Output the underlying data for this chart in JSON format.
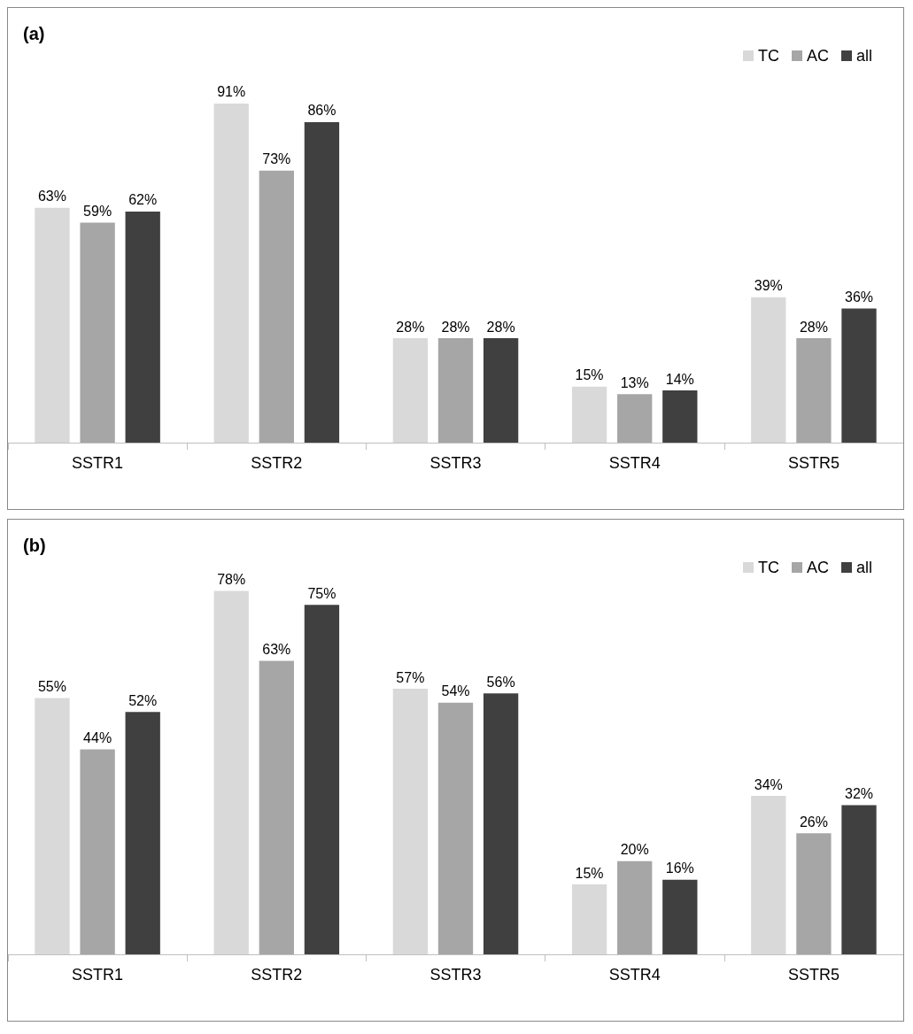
{
  "chart_data": [
    {
      "type": "bar",
      "title": "(a)",
      "categories": [
        "SSTR1",
        "SSTR2",
        "SSTR3",
        "SSTR4",
        "SSTR5"
      ],
      "legend": "top right",
      "tick_labels": "x",
      "series": [
        {
          "name": "TC",
          "color": "#d9d9d9",
          "values": [
            63,
            91,
            28,
            15,
            39
          ],
          "value_labels": [
            "63%",
            "91%",
            "28%",
            "15%",
            "39%"
          ]
        },
        {
          "name": "AC",
          "color": "#a6a6a6",
          "values": [
            59,
            73,
            28,
            13,
            28
          ],
          "value_labels": [
            "59%",
            "73%",
            "28%",
            "13%",
            "28%"
          ]
        },
        {
          "name": "all",
          "color": "#404040",
          "values": [
            62,
            86,
            28,
            14,
            36
          ],
          "value_labels": [
            "62%",
            "86%",
            "28%",
            "14%",
            "36%"
          ]
        }
      ]
    },
    {
      "type": "bar",
      "title": "(b)",
      "categories": [
        "SSTR1",
        "SSTR2",
        "SSTR3",
        "SSTR4",
        "SSTR5"
      ],
      "legend": "top right",
      "tick_labels": "x",
      "series": [
        {
          "name": "TC",
          "color": "#d9d9d9",
          "values": [
            55,
            78,
            57,
            15,
            34
          ],
          "value_labels": [
            "55%",
            "78%",
            "57%",
            "15%",
            "34%"
          ]
        },
        {
          "name": "AC",
          "color": "#a6a6a6",
          "values": [
            44,
            63,
            54,
            20,
            26
          ],
          "value_labels": [
            "44%",
            "63%",
            "54%",
            "20%",
            "26%"
          ]
        },
        {
          "name": "all",
          "color": "#404040",
          "values": [
            52,
            75,
            56,
            16,
            32
          ],
          "value_labels": [
            "52%",
            "75%",
            "56%",
            "16%",
            "32%"
          ]
        }
      ]
    }
  ]
}
